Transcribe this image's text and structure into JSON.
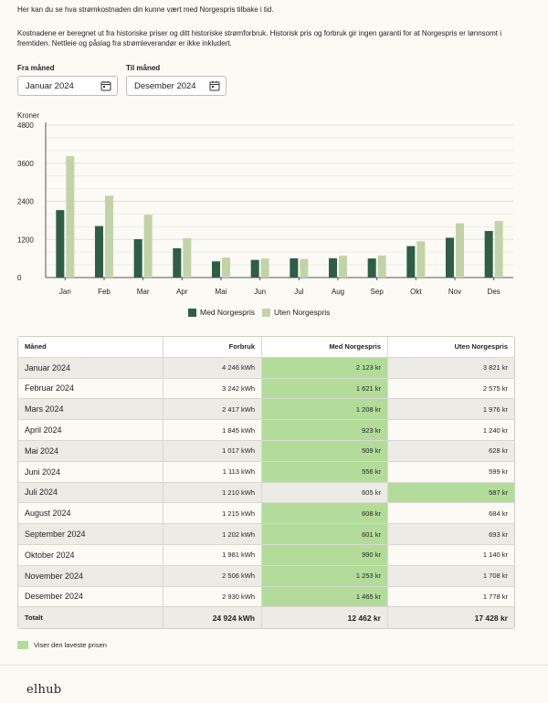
{
  "intro": "Her kan du se hva strømkostnaden din kunne vært med Norgespris tilbake i tid.",
  "description": "Kostnadene er beregnet ut fra historiske priser og ditt historiske strømforbruk. Historisk pris og forbruk gir ingen garanti for at Norgespris er lønnsomt i fremtiden. Nettleie og påslag fra strømleverandør er ikke inkludert.",
  "filters": {
    "from_label": "Fra måned",
    "from_value": "Januar 2024",
    "to_label": "Til måned",
    "to_value": "Desember 2024",
    "calendar_icon": "calendar-icon"
  },
  "chart_data": {
    "type": "bar",
    "ylabel": "Kroner",
    "categories": [
      "Jan",
      "Feb",
      "Mar",
      "Apr",
      "Mai",
      "Jun",
      "Jul",
      "Aug",
      "Sep",
      "Okt",
      "Nov",
      "Des"
    ],
    "yticks": [
      0,
      1200,
      2400,
      3600,
      4800
    ],
    "ylim": [
      0,
      4800
    ],
    "grid": true,
    "legend_position": "bottom",
    "series": [
      {
        "name": "Med Norgespris",
        "color": "#2e5e45",
        "values": [
          2123,
          1621,
          1208,
          923,
          509,
          556,
          605,
          608,
          601,
          990,
          1253,
          1465
        ]
      },
      {
        "name": "Uten Norgespris",
        "color": "#c3d3a8",
        "values": [
          3821,
          2575,
          1976,
          1240,
          628,
          599,
          587,
          684,
          693,
          1140,
          1708,
          1778
        ]
      }
    ]
  },
  "table": {
    "headers": [
      "Måned",
      "Forbruk",
      "Med Norgespris",
      "Uten Norgespris"
    ],
    "rows": [
      {
        "month": "Januar 2024",
        "usage": "4 246 kWh",
        "with": "2 123 kr",
        "without": "3 821 kr",
        "lowest": "with"
      },
      {
        "month": "Februar 2024",
        "usage": "3 242 kWh",
        "with": "1 621 kr",
        "without": "2 575 kr",
        "lowest": "with"
      },
      {
        "month": "Mars 2024",
        "usage": "2 417 kWh",
        "with": "1 208 kr",
        "without": "1 976 kr",
        "lowest": "with"
      },
      {
        "month": "April 2024",
        "usage": "1 845 kWh",
        "with": "923 kr",
        "without": "1 240 kr",
        "lowest": "with"
      },
      {
        "month": "Mai 2024",
        "usage": "1 017 kWh",
        "with": "509 kr",
        "without": "628 kr",
        "lowest": "with"
      },
      {
        "month": "Juni 2024",
        "usage": "1 113 kWh",
        "with": "556 kr",
        "without": "599 kr",
        "lowest": "with"
      },
      {
        "month": "Juli 2024",
        "usage": "1 210 kWh",
        "with": "605 kr",
        "without": "587 kr",
        "lowest": "without"
      },
      {
        "month": "August 2024",
        "usage": "1 215 kWh",
        "with": "608 kr",
        "without": "684 kr",
        "lowest": "with"
      },
      {
        "month": "September 2024",
        "usage": "1 202 kWh",
        "with": "601 kr",
        "without": "693 kr",
        "lowest": "with"
      },
      {
        "month": "Oktober 2024",
        "usage": "1 981 kWh",
        "with": "990 kr",
        "without": "1 140 kr",
        "lowest": "with"
      },
      {
        "month": "November 2024",
        "usage": "2 506 kWh",
        "with": "1 253 kr",
        "without": "1 708 kr",
        "lowest": "with"
      },
      {
        "month": "Desember 2024",
        "usage": "2 930 kWh",
        "with": "1 465 kr",
        "without": "1 778 kr",
        "lowest": "with"
      }
    ],
    "total": {
      "label": "Totalt",
      "usage": "24 924 kWh",
      "with": "12 462 kr",
      "without": "17 428 kr"
    }
  },
  "lowest_note": "Viser den laveste prisen",
  "lowest_color": "#b3dc9b",
  "logo": "elhub"
}
